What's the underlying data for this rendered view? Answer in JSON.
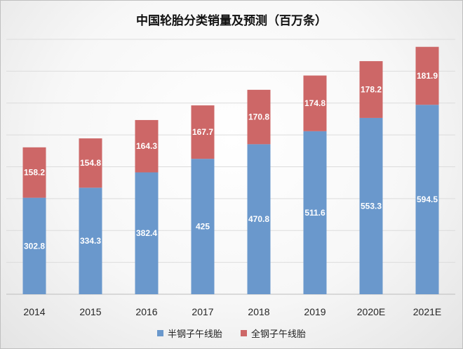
{
  "chart_data": {
    "type": "bar",
    "stacked": true,
    "title": "中国轮胎分类销量及预测（百万条）",
    "categories": [
      "2014",
      "2015",
      "2016",
      "2017",
      "2018",
      "2019",
      "2020E",
      "2021E"
    ],
    "series": [
      {
        "name": "半钢子午线胎",
        "color": "#6a98cc",
        "values": [
          302.8,
          334.3,
          382.4,
          425,
          470.8,
          511.6,
          553.3,
          594.5
        ]
      },
      {
        "name": "全钢子午线胎",
        "color": "#cd6767",
        "values": [
          158.2,
          154.8,
          164.3,
          167.7,
          170.8,
          174.8,
          178.2,
          181.9
        ]
      }
    ],
    "ylim": [
      0,
      800
    ],
    "grid": true,
    "y_tick_labels_visible": false,
    "legend": "bottom"
  }
}
